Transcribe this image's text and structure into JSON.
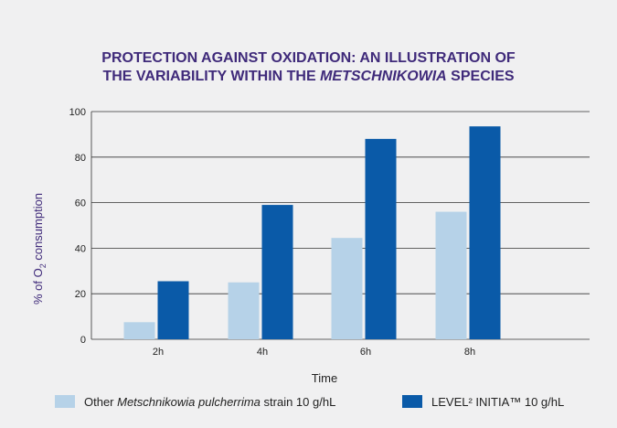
{
  "colors": {
    "background": "#f0f0f1",
    "title": "#3f2a7a",
    "axis_text": "#222222",
    "gridline": "#333333",
    "series_light": "#b6d2e8",
    "series_dark": "#0a5aa8"
  },
  "chart_data": {
    "type": "bar",
    "title": {
      "line1": "PROTECTION AGAINST OXIDATION: AN ILLUSTRATION OF",
      "line2_prefix": "THE VARIABILITY WITHIN THE ",
      "line2_italic": "METSCHNIKOWIA",
      "line2_suffix": " SPECIES"
    },
    "xlabel": "Time",
    "ylabel": {
      "prefix": "% of O",
      "subscript": "2",
      "suffix": " consumption"
    },
    "ylim": [
      0,
      100
    ],
    "yticks": [
      "0",
      "20",
      "40",
      "60",
      "80",
      "100"
    ],
    "ytick_values": [
      0,
      20,
      40,
      60,
      80,
      100
    ],
    "grid": true,
    "legend_position": "bottom",
    "categories": [
      "2h",
      "4h",
      "6h",
      "8h"
    ],
    "series": [
      {
        "name": "Other Metschnikowia pulcherrima strain 10 g/hL",
        "name_prefix": "Other ",
        "name_italic": "Metschnikowia pulcherrima",
        "name_suffix": " strain 10 g/hL",
        "color": "#b6d2e8",
        "values": [
          7.5,
          25,
          44.5,
          56
        ]
      },
      {
        "name": "LEVEL² INITIA™ 10 g/hL",
        "name_prefix": "LEVEL² INITIA™ 10 g/hL",
        "name_italic": "",
        "name_suffix": "",
        "color": "#0a5aa8",
        "values": [
          25.5,
          59,
          88,
          93.5
        ]
      }
    ]
  }
}
